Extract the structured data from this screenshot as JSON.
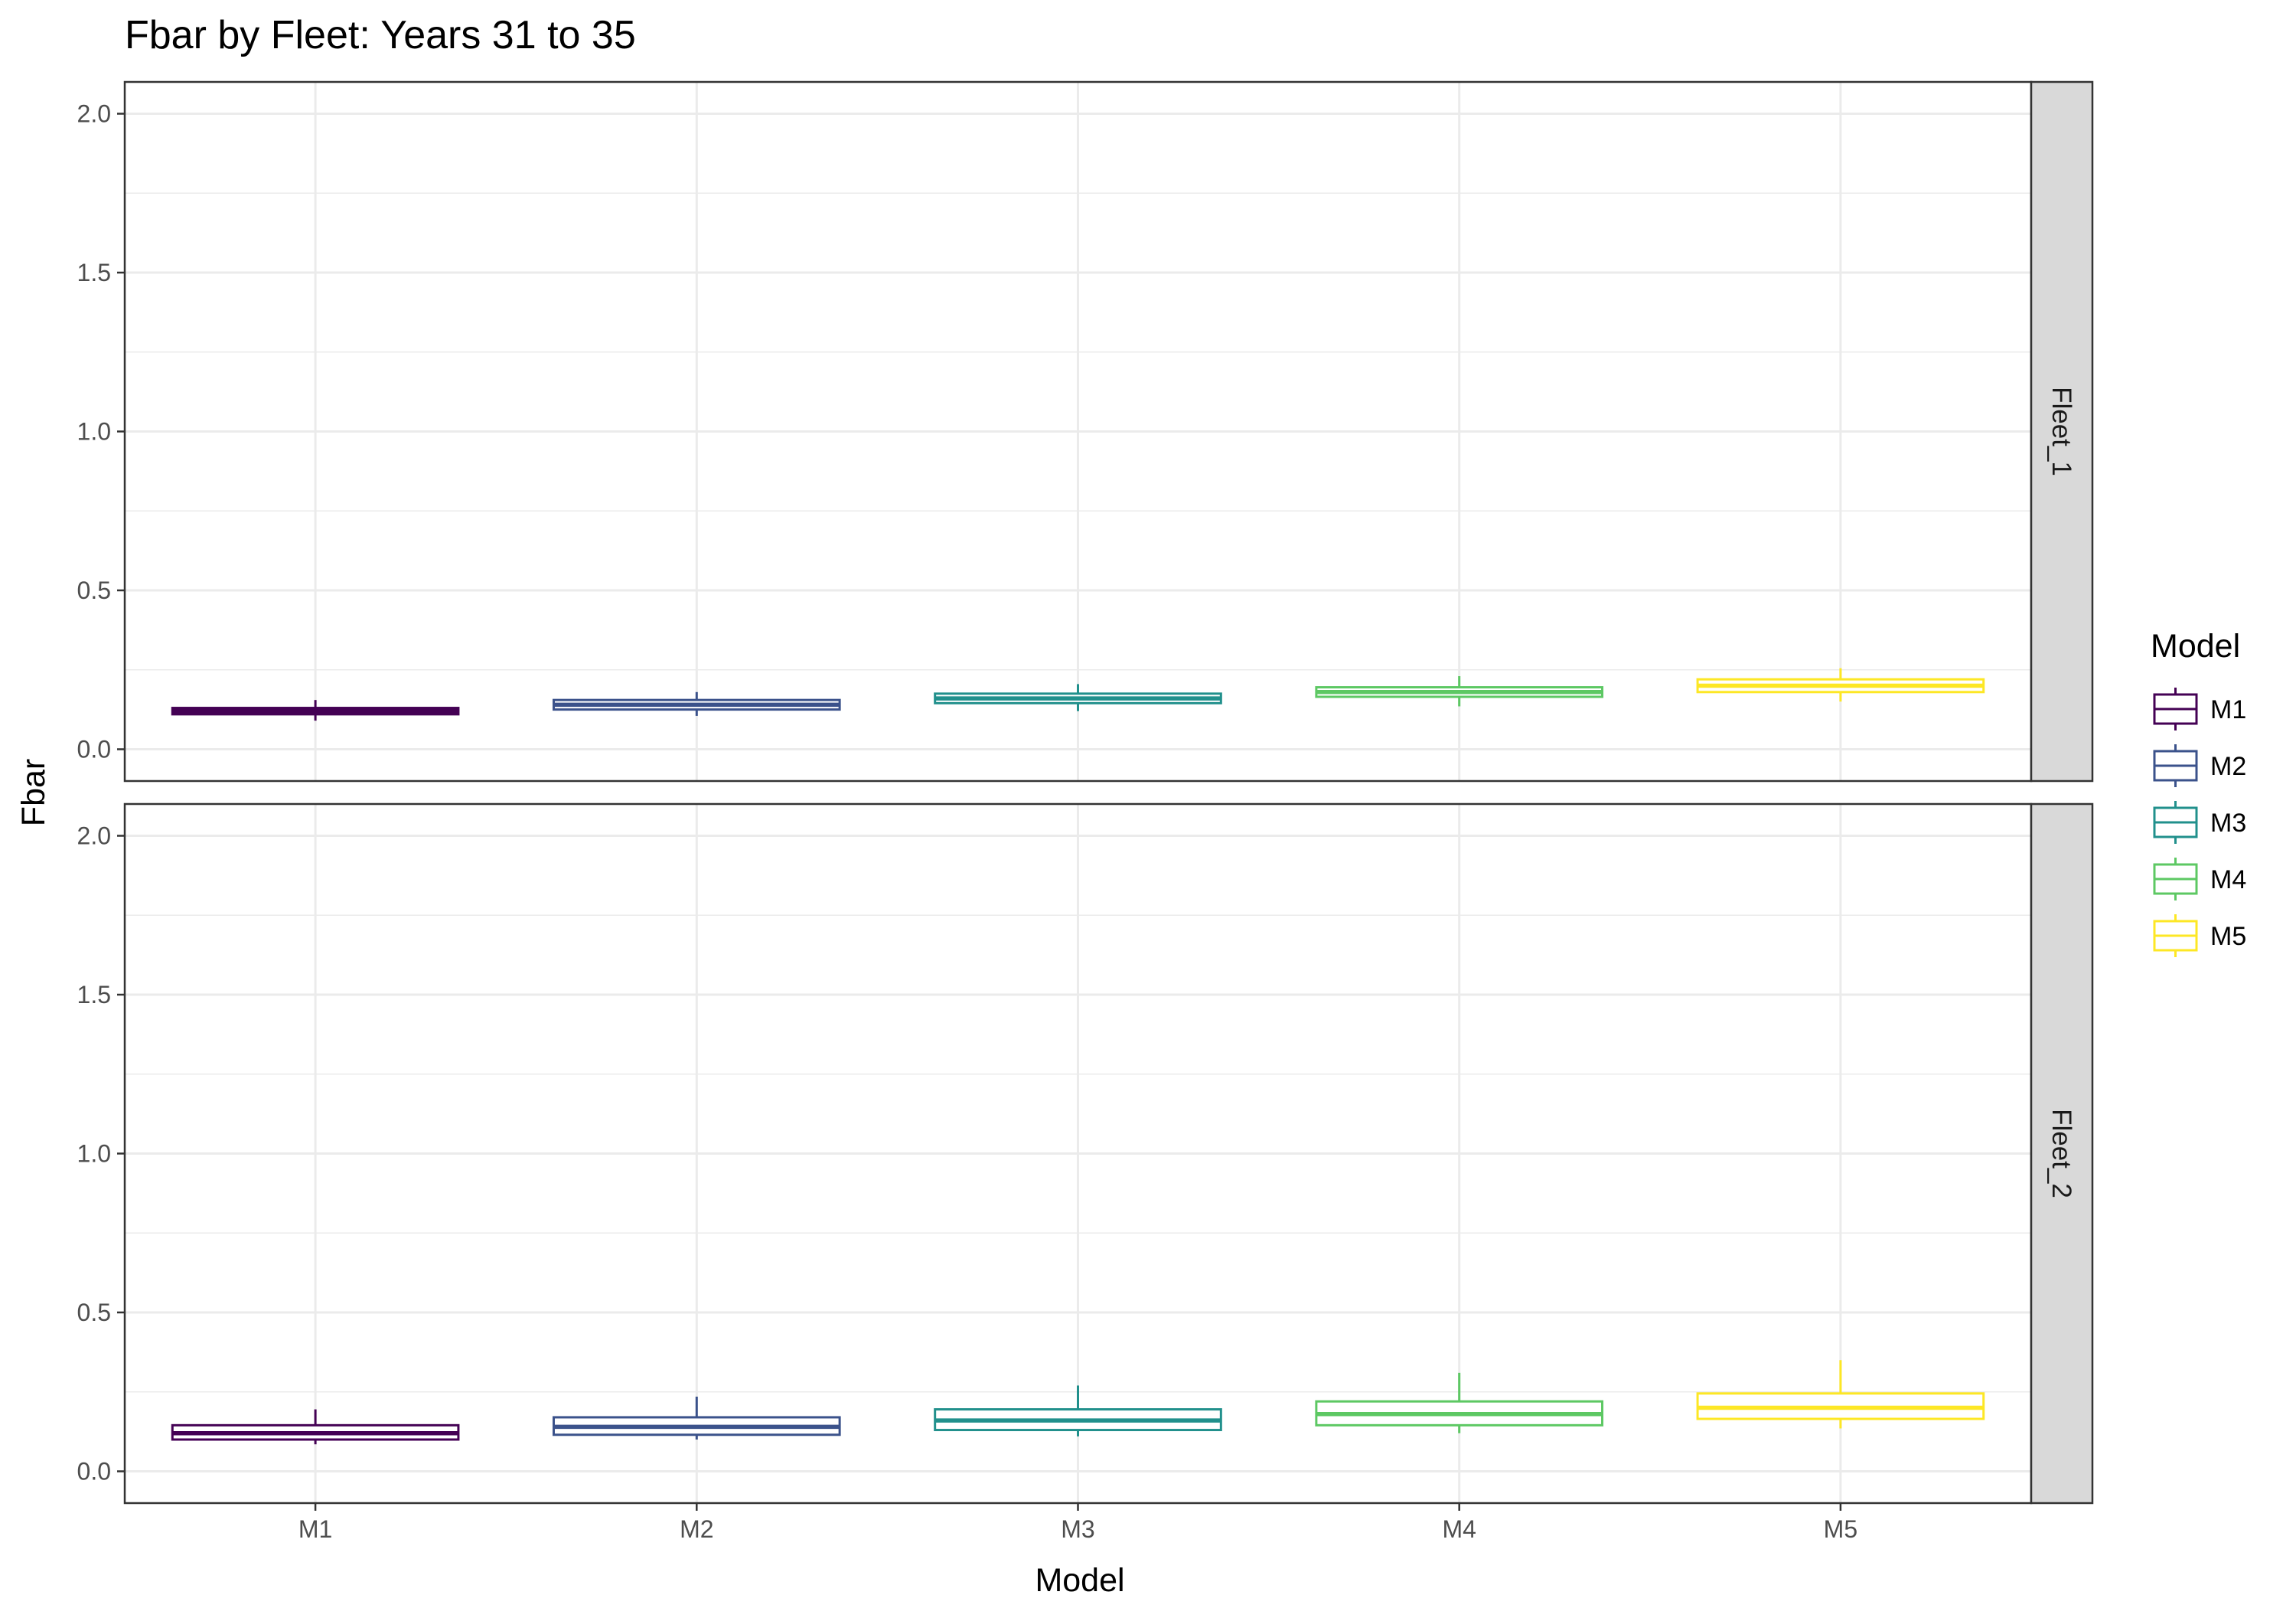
{
  "chart_data": {
    "type": "boxplot",
    "title": "Fbar by Fleet: Years 31 to 35",
    "xlabel": "Model",
    "ylabel": "Fbar",
    "ylim": [
      -0.1,
      2.1
    ],
    "yticks": [
      "0.0",
      "0.5",
      "1.0",
      "1.5",
      "2.0"
    ],
    "ytick_values": [
      0,
      0.5,
      1.0,
      1.5,
      2.0
    ],
    "categories": [
      "M1",
      "M2",
      "M3",
      "M4",
      "M5"
    ],
    "grid": true,
    "legend": {
      "title": "Model",
      "position": "right",
      "items": [
        "M1",
        "M2",
        "M3",
        "M4",
        "M5"
      ]
    },
    "colors": {
      "M1": "#440154",
      "M2": "#3b528b",
      "M3": "#21908c",
      "M4": "#5dc863",
      "M5": "#fde725"
    },
    "facets": [
      {
        "label": "Fleet_1",
        "boxes": [
          {
            "category": "M1",
            "whisker_low": 0.09,
            "q1": 0.11,
            "median": 0.12,
            "q3": 0.13,
            "whisker_high": 0.155
          },
          {
            "category": "M2",
            "whisker_low": 0.105,
            "q1": 0.125,
            "median": 0.14,
            "q3": 0.155,
            "whisker_high": 0.18
          },
          {
            "category": "M3",
            "whisker_low": 0.12,
            "q1": 0.145,
            "median": 0.16,
            "q3": 0.175,
            "whisker_high": 0.205
          },
          {
            "category": "M4",
            "whisker_low": 0.135,
            "q1": 0.165,
            "median": 0.18,
            "q3": 0.195,
            "whisker_high": 0.23
          },
          {
            "category": "M5",
            "whisker_low": 0.15,
            "q1": 0.18,
            "median": 0.2,
            "q3": 0.22,
            "whisker_high": 0.255
          }
        ]
      },
      {
        "label": "Fleet_2",
        "boxes": [
          {
            "category": "M1",
            "whisker_low": 0.085,
            "q1": 0.1,
            "median": 0.12,
            "q3": 0.145,
            "whisker_high": 0.195
          },
          {
            "category": "M2",
            "whisker_low": 0.1,
            "q1": 0.115,
            "median": 0.14,
            "q3": 0.17,
            "whisker_high": 0.235
          },
          {
            "category": "M3",
            "whisker_low": 0.11,
            "q1": 0.13,
            "median": 0.16,
            "q3": 0.195,
            "whisker_high": 0.27
          },
          {
            "category": "M4",
            "whisker_low": 0.12,
            "q1": 0.145,
            "median": 0.18,
            "q3": 0.22,
            "whisker_high": 0.31
          },
          {
            "category": "M5",
            "whisker_low": 0.135,
            "q1": 0.165,
            "median": 0.2,
            "q3": 0.245,
            "whisker_high": 0.35
          }
        ]
      }
    ]
  }
}
